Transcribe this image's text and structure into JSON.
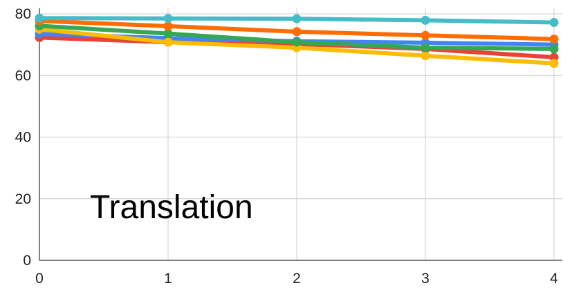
{
  "chart_data": {
    "type": "line",
    "title": "",
    "xlabel": "",
    "ylabel": "",
    "x": [
      0,
      1,
      2,
      3,
      4
    ],
    "xlim": [
      0,
      4
    ],
    "ylim": [
      0,
      80
    ],
    "x_ticks": [
      "0",
      "1",
      "2",
      "3",
      "4"
    ],
    "y_ticks": [
      "0",
      "20",
      "40",
      "60",
      "80"
    ],
    "grid": true,
    "legend": "none",
    "annotation": "Translation",
    "series": [
      {
        "color": "#ea4335",
        "values": [
          72.3,
          70.8,
          70.2,
          68.6,
          65.9
        ]
      },
      {
        "color": "#4285f4",
        "values": [
          73.5,
          72.1,
          71.1,
          70.6,
          70.0
        ]
      },
      {
        "color": "#fbbc04",
        "values": [
          75.0,
          70.8,
          69.0,
          66.4,
          63.9
        ]
      },
      {
        "color": "#34a853",
        "values": [
          76.1,
          73.6,
          70.8,
          69.0,
          68.6
        ]
      },
      {
        "color": "#ff6d01",
        "values": [
          77.7,
          76.0,
          74.2,
          73.0,
          71.8
        ]
      },
      {
        "color": "#46bdc6",
        "values": [
          78.6,
          78.5,
          78.4,
          77.9,
          77.2
        ]
      }
    ]
  }
}
